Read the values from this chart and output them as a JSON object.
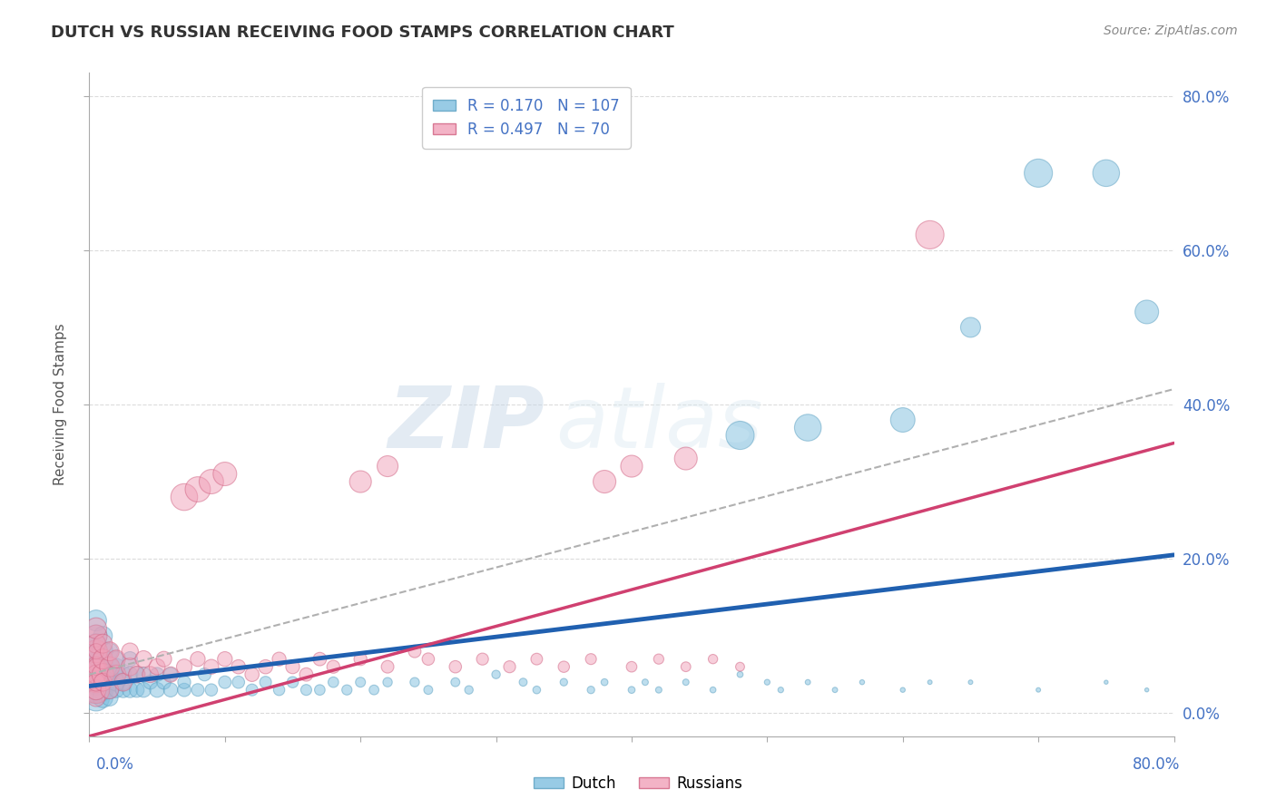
{
  "title": "DUTCH VS RUSSIAN RECEIVING FOOD STAMPS CORRELATION CHART",
  "source": "Source: ZipAtlas.com",
  "ylabel": "Receiving Food Stamps",
  "xlim": [
    0,
    80
  ],
  "ylim": [
    -3,
    83
  ],
  "ytick_values": [
    0,
    20,
    40,
    60,
    80
  ],
  "dutch_color": "#7fbfdf",
  "dutch_edge_color": "#5a9fc0",
  "russian_color": "#f0a0b8",
  "russian_edge_color": "#d06080",
  "dutch_line_color": "#2060b0",
  "russian_line_color": "#d04070",
  "dashed_line_color": "#b0b0b0",
  "dutch_R": 0.17,
  "dutch_N": 107,
  "russian_R": 0.497,
  "russian_N": 70,
  "watermark": "ZIPatlas",
  "dutch_line_x": [
    0,
    80
  ],
  "dutch_line_y": [
    3.5,
    20.5
  ],
  "russian_line_x": [
    0,
    80
  ],
  "russian_line_y": [
    -3.0,
    35.0
  ],
  "dashed_line_x": [
    0,
    80
  ],
  "dashed_line_y": [
    5.0,
    42.0
  ],
  "dutch_scatter_x": [
    0.5,
    0.5,
    0.5,
    0.5,
    0.5,
    0.5,
    0.5,
    0.5,
    0.5,
    0.5,
    0.5,
    0.5,
    0.5,
    0.5,
    0.5,
    0.5,
    0.5,
    0.5,
    0.5,
    0.5,
    1.0,
    1.0,
    1.0,
    1.0,
    1.0,
    1.0,
    1.0,
    1.0,
    1.5,
    1.5,
    1.5,
    1.5,
    1.5,
    1.5,
    2.0,
    2.0,
    2.0,
    2.0,
    2.0,
    2.5,
    2.5,
    2.5,
    3.0,
    3.0,
    3.0,
    3.5,
    3.5,
    4.0,
    4.0,
    4.5,
    5.0,
    5.0,
    5.5,
    6.0,
    6.0,
    7.0,
    7.0,
    8.0,
    8.5,
    9.0,
    10.0,
    11.0,
    12.0,
    13.0,
    14.0,
    15.0,
    16.0,
    17.0,
    18.0,
    19.0,
    20.0,
    21.0,
    22.0,
    24.0,
    25.0,
    27.0,
    28.0,
    30.0,
    32.0,
    33.0,
    35.0,
    37.0,
    38.0,
    40.0,
    41.0,
    42.0,
    44.0,
    46.0,
    48.0,
    50.0,
    51.0,
    53.0,
    55.0,
    57.0,
    60.0,
    62.0,
    65.0,
    70.0,
    75.0,
    78.0,
    48.0,
    53.0,
    60.0,
    65.0,
    70.0,
    75.0,
    78.0
  ],
  "dutch_scatter_y": [
    3,
    5,
    4,
    6,
    7,
    8,
    10,
    12,
    2,
    4,
    6,
    8,
    3,
    5,
    4,
    6,
    7,
    9,
    5,
    3,
    4,
    6,
    8,
    10,
    3,
    5,
    7,
    2,
    4,
    6,
    8,
    3,
    5,
    2,
    4,
    6,
    3,
    5,
    7,
    3,
    5,
    4,
    3,
    5,
    7,
    3,
    5,
    3,
    5,
    4,
    3,
    5,
    4,
    3,
    5,
    3,
    4,
    3,
    5,
    3,
    4,
    4,
    3,
    4,
    3,
    4,
    3,
    3,
    4,
    3,
    4,
    3,
    4,
    4,
    3,
    4,
    3,
    5,
    4,
    3,
    4,
    3,
    4,
    3,
    4,
    3,
    4,
    3,
    5,
    4,
    3,
    4,
    3,
    4,
    3,
    4,
    4,
    3,
    4,
    3,
    36,
    37,
    38,
    50,
    70,
    70,
    52
  ],
  "russian_scatter_x": [
    0.5,
    0.5,
    0.5,
    0.5,
    0.5,
    0.5,
    0.5,
    0.5,
    0.5,
    0.5,
    0.5,
    0.5,
    0.5,
    0.5,
    0.5,
    1.0,
    1.0,
    1.0,
    1.0,
    1.5,
    1.5,
    1.5,
    2.0,
    2.0,
    2.5,
    3.0,
    3.0,
    3.5,
    4.0,
    4.5,
    5.0,
    5.5,
    6.0,
    7.0,
    8.0,
    9.0,
    10.0,
    11.0,
    12.0,
    13.0,
    14.0,
    15.0,
    16.0,
    17.0,
    18.0,
    20.0,
    22.0,
    24.0,
    25.0,
    27.0,
    29.0,
    31.0,
    33.0,
    35.0,
    37.0,
    40.0,
    42.0,
    44.0,
    46.0,
    48.0,
    7.0,
    8.0,
    9.0,
    10.0,
    38.0,
    40.0,
    62.0,
    20.0,
    22.0,
    44.0
  ],
  "russian_scatter_y": [
    3,
    5,
    7,
    8,
    10,
    4,
    6,
    9,
    2,
    11,
    3,
    5,
    4,
    6,
    8,
    5,
    7,
    9,
    4,
    6,
    8,
    3,
    5,
    7,
    4,
    6,
    8,
    5,
    7,
    5,
    6,
    7,
    5,
    6,
    7,
    6,
    7,
    6,
    5,
    6,
    7,
    6,
    5,
    7,
    6,
    7,
    6,
    8,
    7,
    6,
    7,
    6,
    7,
    6,
    7,
    6,
    7,
    6,
    7,
    6,
    28,
    29,
    30,
    31,
    30,
    32,
    62,
    30,
    32,
    33
  ],
  "dutch_scatter_sizes": [
    200,
    180,
    160,
    150,
    140,
    130,
    120,
    110,
    180,
    160,
    140,
    120,
    150,
    130,
    140,
    120,
    110,
    100,
    120,
    100,
    140,
    120,
    100,
    90,
    110,
    90,
    80,
    100,
    90,
    80,
    70,
    80,
    70,
    70,
    80,
    70,
    60,
    70,
    60,
    60,
    70,
    60,
    60,
    60,
    55,
    55,
    60,
    55,
    55,
    50,
    55,
    50,
    50,
    50,
    48,
    45,
    42,
    40,
    42,
    38,
    40,
    38,
    35,
    35,
    32,
    32,
    30,
    28,
    28,
    26,
    25,
    24,
    22,
    22,
    20,
    20,
    18,
    18,
    16,
    15,
    14,
    14,
    12,
    12,
    10,
    10,
    10,
    9,
    9,
    8,
    8,
    7,
    7,
    6,
    6,
    5,
    5,
    5,
    4,
    4,
    200,
    180,
    150,
    100,
    200,
    180,
    140
  ],
  "russian_scatter_sizes": [
    180,
    160,
    140,
    130,
    120,
    110,
    100,
    90,
    80,
    110,
    100,
    90,
    80,
    70,
    60,
    120,
    100,
    90,
    80,
    100,
    90,
    80,
    90,
    80,
    80,
    80,
    70,
    70,
    70,
    65,
    65,
    60,
    60,
    60,
    55,
    55,
    55,
    50,
    50,
    50,
    48,
    48,
    45,
    45,
    42,
    42,
    40,
    40,
    38,
    38,
    36,
    36,
    34,
    32,
    30,
    28,
    26,
    24,
    22,
    20,
    180,
    160,
    150,
    140,
    130,
    120,
    200,
    120,
    110,
    130
  ]
}
